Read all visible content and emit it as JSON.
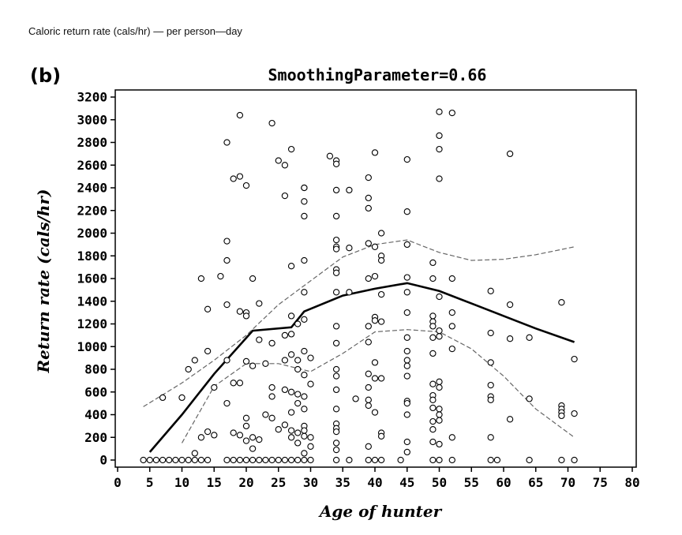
{
  "figure_caption": "Caloric return rate (cals/hr) — per person—day",
  "chart_data": {
    "type": "scatter",
    "panel_label": "(b)",
    "title": "SmoothingParameter=0.66",
    "xlabel": "Age of hunter",
    "ylabel": "Return rate (cals/hr)",
    "xlim": [
      0,
      80
    ],
    "ylim": [
      0,
      3200
    ],
    "x_ticks": [
      0,
      5,
      10,
      15,
      20,
      25,
      30,
      35,
      40,
      45,
      50,
      55,
      60,
      65,
      70,
      75,
      80
    ],
    "y_ticks": [
      0,
      200,
      400,
      600,
      800,
      1000,
      1200,
      1400,
      1600,
      1800,
      2000,
      2200,
      2400,
      2600,
      2800,
      3000,
      3200
    ],
    "grid": false,
    "legend": "none",
    "points": [
      [
        4,
        0
      ],
      [
        5,
        0
      ],
      [
        6,
        0
      ],
      [
        7,
        0
      ],
      [
        8,
        0
      ],
      [
        9,
        0
      ],
      [
        10,
        0
      ],
      [
        11,
        0
      ],
      [
        12,
        0
      ],
      [
        13,
        0
      ],
      [
        14,
        0
      ],
      [
        17,
        0
      ],
      [
        18,
        0
      ],
      [
        19,
        0
      ],
      [
        20,
        0
      ],
      [
        21,
        0
      ],
      [
        22,
        0
      ],
      [
        23,
        0
      ],
      [
        24,
        0
      ],
      [
        25,
        0
      ],
      [
        26,
        0
      ],
      [
        27,
        0
      ],
      [
        28,
        0
      ],
      [
        29,
        0
      ],
      [
        30,
        0
      ],
      [
        34,
        0
      ],
      [
        36,
        0
      ],
      [
        39,
        0
      ],
      [
        40,
        0
      ],
      [
        41,
        0
      ],
      [
        44,
        0
      ],
      [
        49,
        0
      ],
      [
        50,
        0
      ],
      [
        52,
        0
      ],
      [
        58,
        0
      ],
      [
        59,
        0
      ],
      [
        64,
        0
      ],
      [
        69,
        0
      ],
      [
        71,
        0
      ],
      [
        7,
        550
      ],
      [
        10,
        550
      ],
      [
        11,
        800
      ],
      [
        12,
        880
      ],
      [
        12,
        60
      ],
      [
        13,
        1600
      ],
      [
        13,
        200
      ],
      [
        14,
        960
      ],
      [
        14,
        1330
      ],
      [
        14,
        250
      ],
      [
        15,
        640
      ],
      [
        15,
        220
      ],
      [
        16,
        1620
      ],
      [
        17,
        2800
      ],
      [
        17,
        1930
      ],
      [
        17,
        1760
      ],
      [
        17,
        1370
      ],
      [
        17,
        880
      ],
      [
        17,
        500
      ],
      [
        18,
        2480
      ],
      [
        18,
        680
      ],
      [
        18,
        240
      ],
      [
        19,
        3040
      ],
      [
        19,
        2500
      ],
      [
        19,
        1310
      ],
      [
        19,
        680
      ],
      [
        19,
        220
      ],
      [
        20,
        2420
      ],
      [
        20,
        1300
      ],
      [
        20,
        1270
      ],
      [
        20,
        870
      ],
      [
        20,
        370
      ],
      [
        20,
        300
      ],
      [
        20,
        170
      ],
      [
        21,
        1600
      ],
      [
        21,
        830
      ],
      [
        21,
        200
      ],
      [
        21,
        100
      ],
      [
        22,
        1380
      ],
      [
        22,
        1060
      ],
      [
        22,
        180
      ],
      [
        23,
        850
      ],
      [
        23,
        400
      ],
      [
        24,
        2970
      ],
      [
        24,
        1030
      ],
      [
        24,
        640
      ],
      [
        24,
        560
      ],
      [
        24,
        370
      ],
      [
        25,
        2640
      ],
      [
        25,
        270
      ],
      [
        26,
        2600
      ],
      [
        26,
        2330
      ],
      [
        26,
        1100
      ],
      [
        26,
        880
      ],
      [
        26,
        620
      ],
      [
        26,
        310
      ],
      [
        27,
        2740
      ],
      [
        27,
        1710
      ],
      [
        27,
        1270
      ],
      [
        27,
        1110
      ],
      [
        27,
        930
      ],
      [
        27,
        600
      ],
      [
        27,
        420
      ],
      [
        27,
        260
      ],
      [
        27,
        200
      ],
      [
        28,
        1200
      ],
      [
        28,
        880
      ],
      [
        28,
        800
      ],
      [
        28,
        580
      ],
      [
        28,
        500
      ],
      [
        28,
        240
      ],
      [
        28,
        150
      ],
      [
        29,
        2400
      ],
      [
        29,
        2400
      ],
      [
        29,
        2280
      ],
      [
        29,
        2150
      ],
      [
        29,
        1760
      ],
      [
        29,
        1480
      ],
      [
        29,
        1240
      ],
      [
        29,
        960
      ],
      [
        29,
        750
      ],
      [
        29,
        560
      ],
      [
        29,
        450
      ],
      [
        29,
        300
      ],
      [
        29,
        260
      ],
      [
        29,
        210
      ],
      [
        29,
        60
      ],
      [
        30,
        900
      ],
      [
        30,
        670
      ],
      [
        30,
        200
      ],
      [
        30,
        120
      ],
      [
        33,
        2680
      ],
      [
        34,
        2640
      ],
      [
        34,
        2610
      ],
      [
        34,
        2380
      ],
      [
        34,
        2150
      ],
      [
        34,
        1940
      ],
      [
        34,
        1880
      ],
      [
        34,
        1860
      ],
      [
        34,
        1680
      ],
      [
        34,
        1650
      ],
      [
        34,
        1480
      ],
      [
        34,
        1180
      ],
      [
        34,
        1030
      ],
      [
        34,
        800
      ],
      [
        34,
        740
      ],
      [
        34,
        620
      ],
      [
        34,
        450
      ],
      [
        34,
        320
      ],
      [
        34,
        280
      ],
      [
        34,
        250
      ],
      [
        34,
        150
      ],
      [
        34,
        90
      ],
      [
        36,
        2380
      ],
      [
        36,
        1870
      ],
      [
        36,
        1480
      ],
      [
        37,
        540
      ],
      [
        39,
        2490
      ],
      [
        39,
        2310
      ],
      [
        39,
        2220
      ],
      [
        39,
        1910
      ],
      [
        39,
        1600
      ],
      [
        39,
        1180
      ],
      [
        39,
        1040
      ],
      [
        39,
        760
      ],
      [
        39,
        640
      ],
      [
        39,
        530
      ],
      [
        39,
        480
      ],
      [
        39,
        120
      ],
      [
        40,
        2710
      ],
      [
        40,
        1880
      ],
      [
        40,
        1620
      ],
      [
        40,
        1260
      ],
      [
        40,
        1230
      ],
      [
        40,
        860
      ],
      [
        40,
        720
      ],
      [
        40,
        420
      ],
      [
        41,
        2000
      ],
      [
        41,
        1800
      ],
      [
        41,
        1760
      ],
      [
        41,
        1460
      ],
      [
        41,
        1220
      ],
      [
        41,
        720
      ],
      [
        41,
        240
      ],
      [
        41,
        210
      ],
      [
        45,
        2650
      ],
      [
        45,
        2190
      ],
      [
        45,
        1900
      ],
      [
        45,
        1610
      ],
      [
        45,
        1480
      ],
      [
        45,
        1300
      ],
      [
        45,
        1080
      ],
      [
        45,
        960
      ],
      [
        45,
        880
      ],
      [
        45,
        830
      ],
      [
        45,
        740
      ],
      [
        45,
        520
      ],
      [
        45,
        500
      ],
      [
        45,
        400
      ],
      [
        45,
        160
      ],
      [
        45,
        70
      ],
      [
        49,
        1740
      ],
      [
        49,
        1600
      ],
      [
        49,
        1270
      ],
      [
        49,
        1220
      ],
      [
        49,
        1180
      ],
      [
        49,
        1080
      ],
      [
        49,
        940
      ],
      [
        49,
        670
      ],
      [
        49,
        570
      ],
      [
        49,
        530
      ],
      [
        49,
        460
      ],
      [
        49,
        340
      ],
      [
        49,
        270
      ],
      [
        49,
        160
      ],
      [
        50,
        3070
      ],
      [
        50,
        2860
      ],
      [
        50,
        2740
      ],
      [
        50,
        2480
      ],
      [
        50,
        1440
      ],
      [
        50,
        1140
      ],
      [
        50,
        1090
      ],
      [
        50,
        690
      ],
      [
        50,
        640
      ],
      [
        50,
        450
      ],
      [
        50,
        400
      ],
      [
        50,
        350
      ],
      [
        50,
        140
      ],
      [
        52,
        3060
      ],
      [
        52,
        1600
      ],
      [
        52,
        1300
      ],
      [
        52,
        1180
      ],
      [
        52,
        980
      ],
      [
        52,
        200
      ],
      [
        58,
        1490
      ],
      [
        58,
        1120
      ],
      [
        58,
        860
      ],
      [
        58,
        660
      ],
      [
        58,
        560
      ],
      [
        58,
        530
      ],
      [
        58,
        200
      ],
      [
        61,
        2700
      ],
      [
        61,
        1370
      ],
      [
        61,
        1070
      ],
      [
        61,
        360
      ],
      [
        64,
        1080
      ],
      [
        64,
        540
      ],
      [
        69,
        1390
      ],
      [
        69,
        480
      ],
      [
        69,
        450
      ],
      [
        69,
        420
      ],
      [
        69,
        390
      ],
      [
        71,
        890
      ],
      [
        71,
        410
      ]
    ],
    "series": [
      {
        "style": "solid",
        "x": [
          5,
          10,
          15,
          21,
          27,
          29,
          35,
          40,
          45,
          50,
          55,
          60,
          65,
          71
        ],
        "y": [
          70,
          400,
          760,
          1140,
          1170,
          1310,
          1450,
          1510,
          1560,
          1490,
          1380,
          1270,
          1160,
          1040
        ]
      },
      {
        "style": "dashed",
        "x": [
          4,
          10,
          15,
          20,
          25,
          30,
          35,
          40,
          45,
          50,
          55,
          60,
          65,
          71
        ],
        "y": [
          470,
          680,
          880,
          1100,
          1370,
          1580,
          1790,
          1900,
          1940,
          1830,
          1760,
          1770,
          1810,
          1880
        ]
      },
      {
        "style": "dashed",
        "x": [
          10,
          15,
          20,
          25,
          30,
          35,
          40,
          45,
          50,
          55,
          60,
          65,
          71
        ],
        "y": [
          150,
          650,
          850,
          850,
          780,
          940,
          1130,
          1150,
          1130,
          980,
          740,
          450,
          200
        ]
      }
    ]
  }
}
